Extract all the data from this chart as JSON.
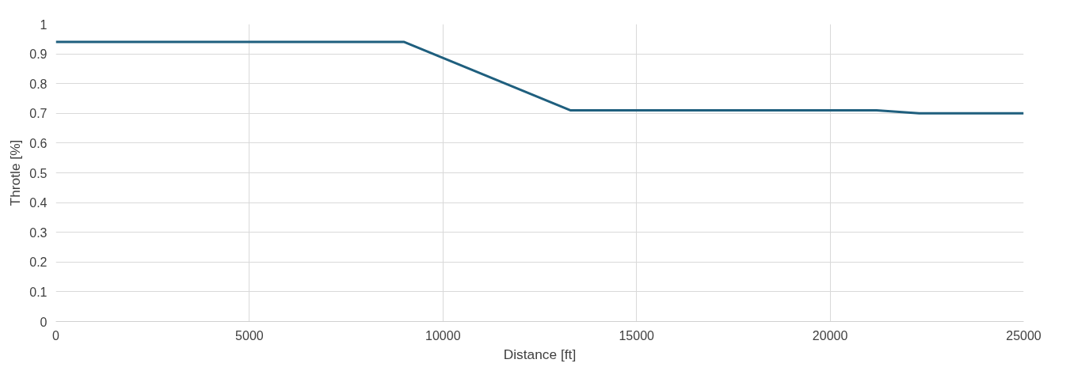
{
  "chart_data": {
    "type": "line",
    "xlabel": "Distance [ft]",
    "ylabel": "Throtle [%]",
    "x": [
      0,
      9000,
      13300,
      21200,
      22300,
      25000
    ],
    "series": [
      {
        "color": "#1f5f7e",
        "values": [
          0.94,
          0.94,
          0.71,
          0.71,
          0.7,
          0.7
        ]
      }
    ],
    "xlim": [
      0,
      25000
    ],
    "xticks": [
      0,
      5000,
      10000,
      15000,
      20000,
      25000
    ],
    "ylim": [
      0,
      1
    ],
    "yticks": [
      0,
      0.1,
      0.2,
      0.3,
      0.4,
      0.5,
      0.6,
      0.7,
      0.8,
      0.9,
      1
    ],
    "grid": true
  }
}
